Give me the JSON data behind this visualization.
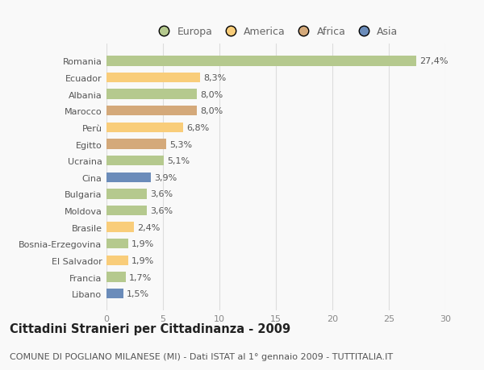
{
  "categories": [
    "Romania",
    "Ecuador",
    "Albania",
    "Marocco",
    "Perù",
    "Egitto",
    "Ucraina",
    "Cina",
    "Bulgaria",
    "Moldova",
    "Brasile",
    "Bosnia-Erzegovina",
    "El Salvador",
    "Francia",
    "Libano"
  ],
  "values": [
    27.4,
    8.3,
    8.0,
    8.0,
    6.8,
    5.3,
    5.1,
    3.9,
    3.6,
    3.6,
    2.4,
    1.9,
    1.9,
    1.7,
    1.5
  ],
  "labels": [
    "27,4%",
    "8,3%",
    "8,0%",
    "8,0%",
    "6,8%",
    "5,3%",
    "5,1%",
    "3,9%",
    "3,6%",
    "3,6%",
    "2,4%",
    "1,9%",
    "1,9%",
    "1,7%",
    "1,5%"
  ],
  "colors": [
    "#b5c98e",
    "#f9cd7a",
    "#b5c98e",
    "#d4a97a",
    "#f9cd7a",
    "#d4a97a",
    "#b5c98e",
    "#6b8cba",
    "#b5c98e",
    "#b5c98e",
    "#f9cd7a",
    "#b5c98e",
    "#f9cd7a",
    "#b5c98e",
    "#6b8cba"
  ],
  "legend_labels": [
    "Europa",
    "America",
    "Africa",
    "Asia"
  ],
  "legend_colors": [
    "#b5c98e",
    "#f9cd7a",
    "#d4a97a",
    "#6b8cba"
  ],
  "xlim": [
    0,
    30
  ],
  "xticks": [
    0,
    5,
    10,
    15,
    20,
    25,
    30
  ],
  "title": "Cittadini Stranieri per Cittadinanza - 2009",
  "subtitle": "COMUNE DI POGLIANO MILANESE (MI) - Dati ISTAT al 1° gennaio 2009 - TUTTITALIA.IT",
  "background_color": "#f9f9f9",
  "grid_color": "#dddddd",
  "bar_height": 0.6,
  "label_fontsize": 8,
  "tick_fontsize": 8,
  "title_fontsize": 10.5,
  "subtitle_fontsize": 8
}
